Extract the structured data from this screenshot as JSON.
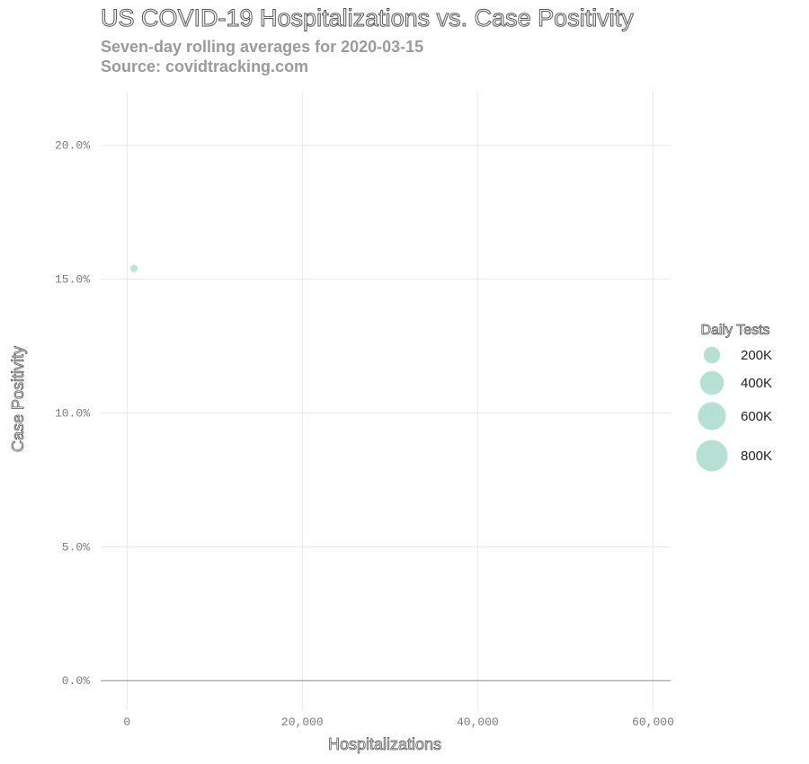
{
  "chart_data": {
    "type": "scatter",
    "title": "US COVID-19 Hospitalizations vs. Case Positivity",
    "subtitle": "Seven-day rolling averages for 2020-03-15",
    "source": "Source: covidtracking.com",
    "xlabel": "Hospitalizations",
    "ylabel": "Case Positivity",
    "xlim": [
      -3000,
      62000
    ],
    "ylim": [
      -0.011,
      0.22
    ],
    "x_ticks": [
      0,
      20000,
      40000,
      60000
    ],
    "x_tick_labels": [
      "0",
      "20,000",
      "40,000",
      "60,000"
    ],
    "y_ticks": [
      0,
      0.05,
      0.1,
      0.15,
      0.2
    ],
    "y_tick_labels": [
      "0.0%",
      "5.0%",
      "10.0%",
      "15.0%",
      "20.0%"
    ],
    "grid": true,
    "points": [
      {
        "x": 800,
        "y": 0.154,
        "daily_tests": 20000
      }
    ],
    "point_color": "#b5e0d3",
    "legend": {
      "title": "Daily Tests",
      "position": "right",
      "entries": [
        {
          "label": "200K",
          "value": 200000
        },
        {
          "label": "400K",
          "value": 400000
        },
        {
          "label": "600K",
          "value": 600000
        },
        {
          "label": "800K",
          "value": 800000
        }
      ]
    }
  }
}
